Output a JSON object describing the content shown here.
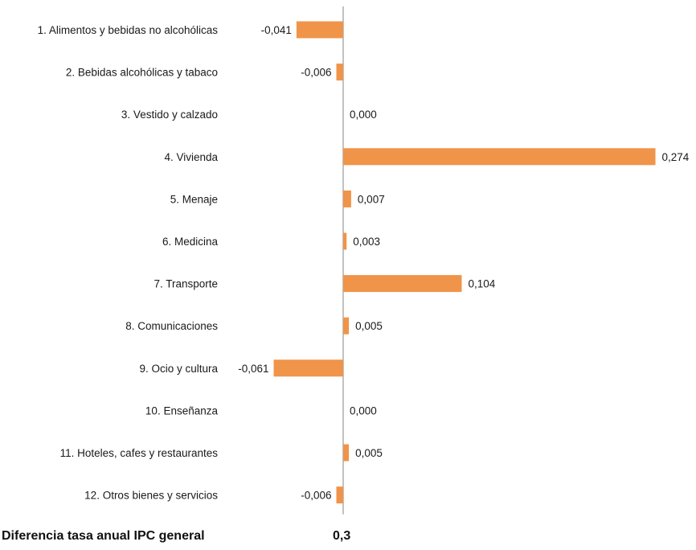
{
  "chart_data": {
    "type": "bar",
    "orientation": "horizontal",
    "categories": [
      "1. Alimentos y bebidas no alcohólicas",
      "2. Bebidas alcohólicas y tabaco",
      "3. Vestido y calzado",
      "4. Vivienda",
      "5. Menaje",
      "6. Medicina",
      "7. Transporte",
      "8. Comunicaciones",
      "9. Ocio y cultura",
      "10. Enseñanza",
      "11. Hoteles, cafes y restaurantes",
      "12. Otros bienes y servicios"
    ],
    "values": [
      -0.041,
      -0.006,
      0.0,
      0.274,
      0.007,
      0.003,
      0.104,
      0.005,
      -0.061,
      0.0,
      0.005,
      -0.006
    ],
    "value_labels": [
      "-0,041",
      "-0,006",
      "0,000",
      "0,274",
      "0,007",
      "0,003",
      "0,104",
      "0,005",
      "-0,061",
      "0,000",
      "0,005",
      "-0,006"
    ],
    "bar_color": "#f0944a",
    "axis_color": "#999999",
    "grid": false,
    "legend": "none"
  },
  "footer": {
    "label": "Diferencia tasa anual IPC general",
    "value": "0,3"
  }
}
